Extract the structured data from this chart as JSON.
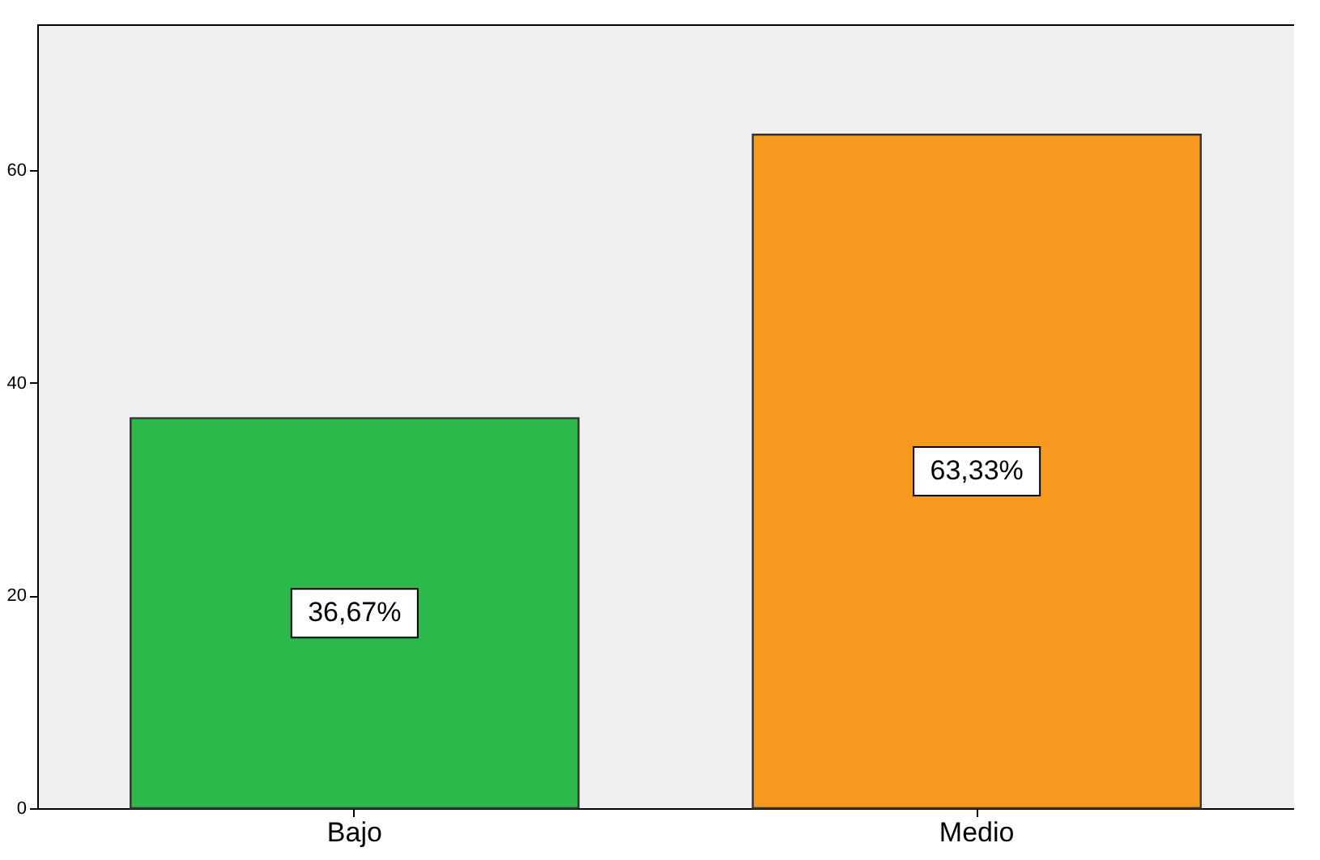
{
  "chart_data": {
    "type": "bar",
    "categories": [
      "Bajo",
      "Medio"
    ],
    "values": [
      36.67,
      63.33
    ],
    "colors": [
      "#2db84b",
      "#f7991f"
    ],
    "value_labels": [
      "36,67%",
      "63,33%"
    ],
    "ylim": [
      0,
      73.7
    ],
    "yticks": [
      0,
      20,
      40,
      60
    ],
    "grid": false
  }
}
